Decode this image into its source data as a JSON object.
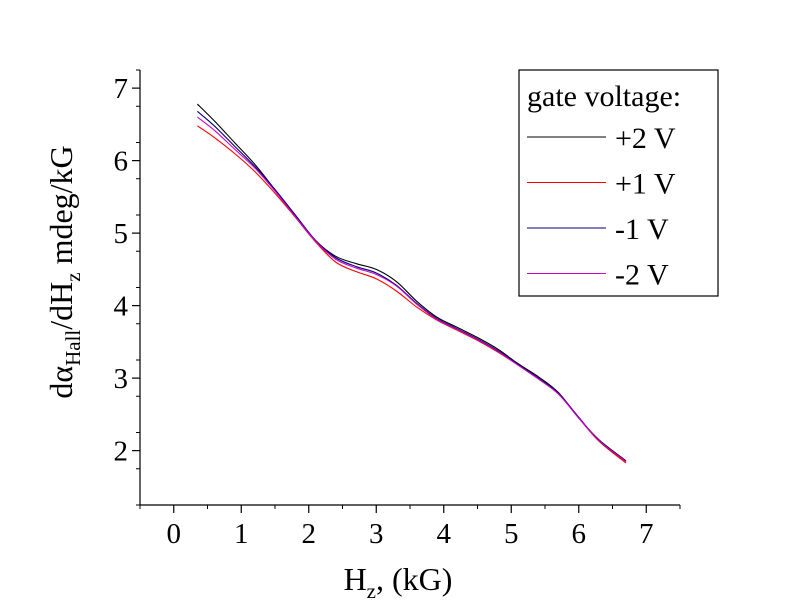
{
  "chart_data": {
    "type": "line",
    "title": "",
    "xlabel": {
      "main": "H",
      "sub": "z",
      "rest": ", (kG)"
    },
    "ylabel": {
      "p1": "dα",
      "sub1": "Hall",
      "p2": "/dH",
      "sub2": "z",
      "p3": " mdeg/kG"
    },
    "xlim": [
      -0.5,
      7.5
    ],
    "ylim": [
      1.25,
      7.25
    ],
    "xticks": [
      0,
      1,
      2,
      3,
      4,
      5,
      6,
      7
    ],
    "xtick_labels": [
      "0",
      "1",
      "2",
      "3",
      "4",
      "5",
      "6",
      "7"
    ],
    "yticks": [
      2,
      3,
      4,
      5,
      6,
      7
    ],
    "ytick_labels": [
      "2",
      "3",
      "4",
      "5",
      "6",
      "7"
    ],
    "grid": false,
    "legend": {
      "title": "gate voltage:",
      "placement": "top-right"
    },
    "series": [
      {
        "name": "+2 V",
        "color": "#000000",
        "x": [
          0.35,
          0.6,
          0.9,
          1.2,
          1.5,
          1.8,
          2.1,
          2.4,
          2.7,
          3.0,
          3.3,
          3.6,
          3.9,
          4.2,
          4.5,
          4.8,
          5.1,
          5.4,
          5.7,
          6.0,
          6.3,
          6.7
        ],
        "y": [
          6.78,
          6.55,
          6.25,
          5.95,
          5.6,
          5.25,
          4.9,
          4.68,
          4.58,
          4.5,
          4.33,
          4.06,
          3.84,
          3.7,
          3.56,
          3.4,
          3.2,
          3.02,
          2.8,
          2.45,
          2.15,
          1.86
        ]
      },
      {
        "name": "+1 V",
        "color": "#ff0000",
        "x": [
          0.35,
          0.6,
          0.9,
          1.2,
          1.5,
          1.8,
          2.1,
          2.4,
          2.7,
          3.0,
          3.3,
          3.6,
          3.9,
          4.2,
          4.5,
          4.8,
          5.1,
          5.4,
          5.7,
          6.0,
          6.3,
          6.7
        ],
        "y": [
          6.48,
          6.32,
          6.1,
          5.85,
          5.55,
          5.22,
          4.88,
          4.6,
          4.47,
          4.37,
          4.2,
          3.98,
          3.8,
          3.66,
          3.52,
          3.36,
          3.18,
          2.99,
          2.78,
          2.45,
          2.13,
          1.83
        ]
      },
      {
        "name": "-1 V",
        "color": "#000080",
        "x": [
          0.35,
          0.6,
          0.9,
          1.2,
          1.5,
          1.8,
          2.1,
          2.4,
          2.7,
          3.0,
          3.3,
          3.6,
          3.9,
          4.2,
          4.5,
          4.8,
          5.1,
          5.4,
          5.7,
          6.0,
          6.3,
          6.7
        ],
        "y": [
          6.68,
          6.48,
          6.2,
          5.92,
          5.6,
          5.25,
          4.9,
          4.66,
          4.54,
          4.45,
          4.28,
          4.03,
          3.82,
          3.68,
          3.54,
          3.38,
          3.19,
          3.0,
          2.79,
          2.46,
          2.14,
          1.85
        ]
      },
      {
        "name": "-2 V",
        "color": "#cc00cc",
        "x": [
          0.35,
          0.6,
          0.9,
          1.2,
          1.5,
          1.8,
          2.1,
          2.4,
          2.7,
          3.0,
          3.3,
          3.6,
          3.9,
          4.2,
          4.5,
          4.8,
          5.1,
          5.4,
          5.7,
          6.0,
          6.3,
          6.7
        ],
        "y": [
          6.6,
          6.42,
          6.16,
          5.9,
          5.58,
          5.23,
          4.89,
          4.64,
          4.52,
          4.43,
          4.27,
          4.02,
          3.81,
          3.67,
          3.53,
          3.37,
          3.18,
          2.99,
          2.78,
          2.45,
          2.14,
          1.85
        ]
      }
    ]
  }
}
